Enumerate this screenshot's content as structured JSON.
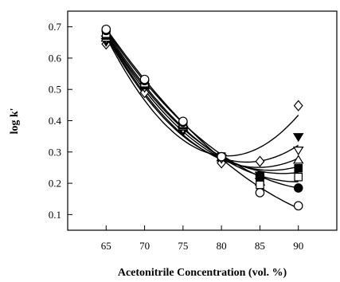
{
  "chart_data": {
    "type": "scatter",
    "title": "",
    "xlabel": "Acetonitrile Concentration (vol. %)",
    "ylabel": "log k'",
    "xlim": [
      60,
      95
    ],
    "ylim": [
      0.05,
      0.75
    ],
    "x_ticks": [
      65,
      70,
      75,
      80,
      85,
      90
    ],
    "y_ticks": [
      0.1,
      0.2,
      0.3,
      0.4,
      0.5,
      0.6,
      0.7
    ],
    "grid": false,
    "legend": "none",
    "x": [
      65,
      70,
      75,
      80,
      85,
      90
    ],
    "series": [
      {
        "marker": "diamond-open",
        "values": [
          0.645,
          0.49,
          0.375,
          0.265,
          0.27,
          0.448
        ]
      },
      {
        "marker": "triangle-down-filled",
        "values": [
          0.652,
          0.508,
          0.365,
          0.28,
          0.225,
          0.348
        ]
      },
      {
        "marker": "triangle-down-open",
        "values": [
          0.66,
          0.505,
          0.372,
          0.278,
          0.205,
          0.305
        ]
      },
      {
        "marker": "triangle-up-open",
        "values": [
          0.665,
          0.512,
          0.38,
          0.282,
          0.205,
          0.275
        ]
      },
      {
        "marker": "square-filled",
        "values": [
          0.672,
          0.515,
          0.385,
          0.285,
          0.215,
          0.248
        ]
      },
      {
        "marker": "square-open",
        "values": [
          0.678,
          0.52,
          0.39,
          0.285,
          0.195,
          0.22
        ]
      },
      {
        "marker": "circle-filled",
        "values": [
          0.688,
          0.528,
          0.395,
          0.285,
          0.225,
          0.185
        ]
      },
      {
        "marker": "circle-open",
        "values": [
          0.692,
          0.532,
          0.398,
          0.285,
          0.17,
          0.128
        ]
      }
    ]
  }
}
